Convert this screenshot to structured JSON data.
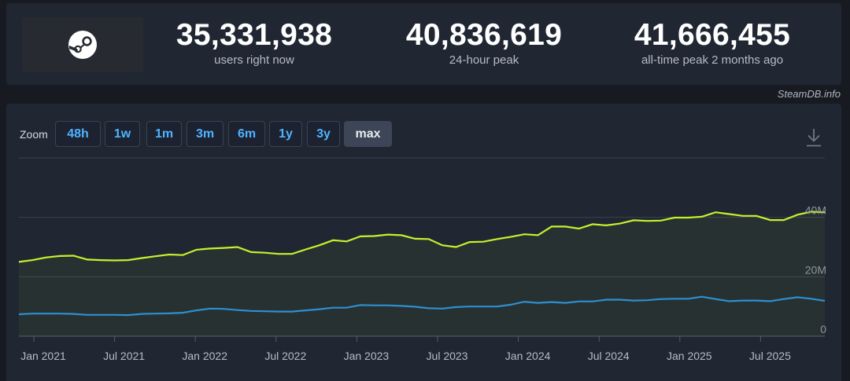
{
  "stats": [
    {
      "value": "35,331,938",
      "label": "users right now"
    },
    {
      "value": "40,836,619",
      "label": "24-hour peak"
    },
    {
      "value": "41,666,455",
      "label": "all-time peak 2 months ago"
    }
  ],
  "credit": "SteamDB.info",
  "zoom": {
    "label": "Zoom",
    "buttons": [
      "48h",
      "1w",
      "1m",
      "3m",
      "6m",
      "1y",
      "3y",
      "max"
    ],
    "active": "max"
  },
  "icons": {
    "logo": "steam-logo-icon",
    "download": "download-icon"
  },
  "colors": {
    "peak_line": "#c5f12c",
    "current_line": "#2d8fd1",
    "link": "#4fb3ff"
  },
  "chart_data": {
    "type": "line",
    "x_ticks": [
      "Jan 2021",
      "Jul 2021",
      "Jan 2022",
      "Jul 2022",
      "Jan 2023",
      "Jul 2023",
      "Jan 2024",
      "Jul 2024",
      "Jan 2025",
      "Jul 2025"
    ],
    "y_ticks": [
      "0",
      "20M",
      "40M"
    ],
    "ylim": [
      0,
      60000000
    ],
    "series": [
      {
        "color": "#c5f12c",
        "values": [
          25.0,
          25.6,
          26.5,
          27.0,
          27.1,
          25.8,
          25.6,
          25.5,
          25.6,
          26.3,
          26.9,
          27.5,
          27.3,
          29.1,
          29.5,
          29.7,
          30.0,
          28.3,
          28.1,
          27.7,
          27.7,
          29.2,
          30.6,
          32.3,
          31.9,
          33.6,
          33.7,
          34.2,
          34.0,
          32.8,
          32.7,
          30.6,
          30.0,
          31.7,
          31.8,
          32.7,
          33.4,
          34.3,
          34.0,
          36.9,
          36.9,
          36.2,
          37.7,
          37.3,
          37.9,
          39.0,
          38.8,
          38.9,
          39.9,
          39.9,
          40.2,
          41.7,
          41.1,
          40.5,
          40.5,
          39.1,
          39.1,
          40.9,
          41.9,
          41.7
        ]
      },
      {
        "color": "#2d8fd1",
        "values": [
          7.4,
          7.6,
          7.6,
          7.6,
          7.5,
          7.2,
          7.2,
          7.2,
          7.1,
          7.5,
          7.6,
          7.7,
          7.9,
          8.7,
          9.3,
          9.2,
          8.8,
          8.5,
          8.4,
          8.3,
          8.3,
          8.7,
          9.1,
          9.6,
          9.6,
          10.5,
          10.4,
          10.4,
          10.2,
          9.9,
          9.4,
          9.3,
          9.8,
          10.0,
          10.0,
          10.0,
          10.6,
          11.6,
          11.2,
          11.5,
          11.2,
          11.7,
          11.7,
          12.3,
          12.3,
          12.0,
          12.1,
          12.5,
          12.6,
          12.6,
          13.3,
          12.5,
          11.8,
          12.0,
          12.0,
          11.8,
          12.5,
          13.1,
          12.6,
          11.9
        ]
      }
    ]
  }
}
